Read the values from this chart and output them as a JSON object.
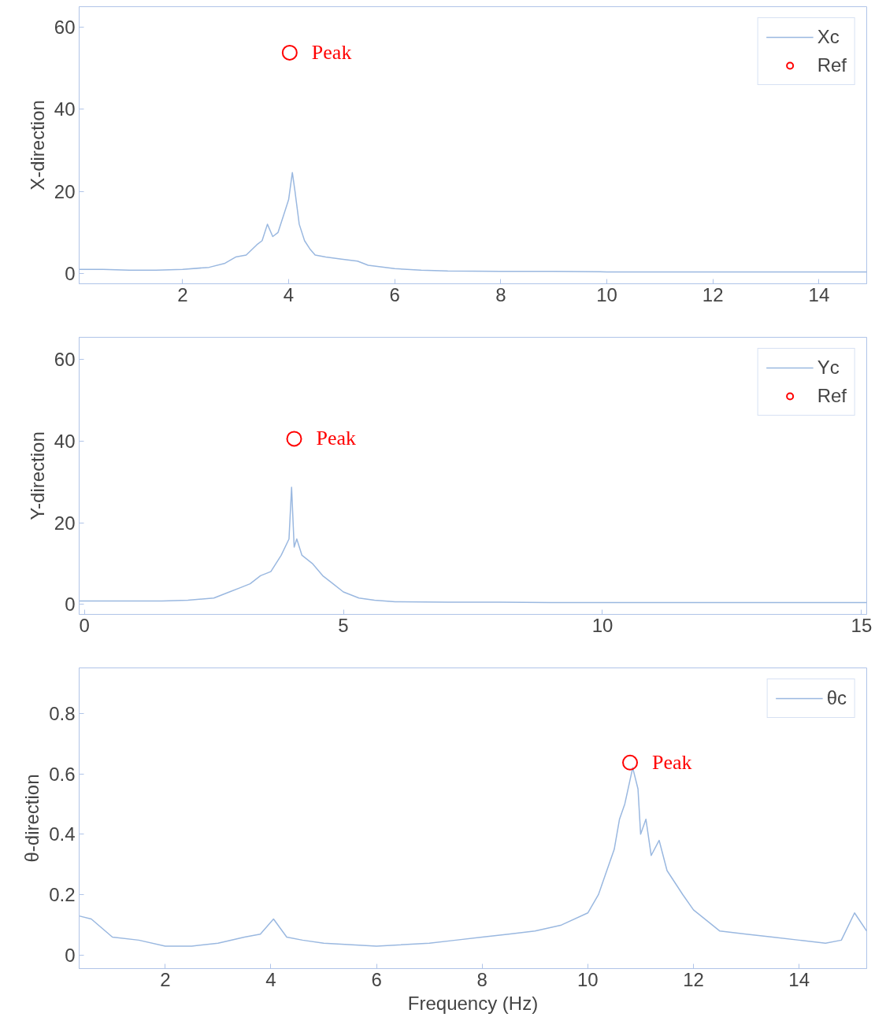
{
  "chart_data": [
    {
      "type": "line",
      "ylabel": "X-direction",
      "xlim": [
        0.05,
        14.9
      ],
      "ylim": [
        -2.5,
        65
      ],
      "xticks": [
        2,
        4,
        6,
        8,
        10,
        12,
        14
      ],
      "yticks": [
        0,
        20,
        40,
        60
      ],
      "grid": false,
      "legend": "top right",
      "annotations": [
        {
          "text": "Peak",
          "x": 4.02,
          "y": 53.8
        }
      ],
      "series": [
        {
          "name": "Xc",
          "color": "#9ab8e0",
          "x": [
            0.05,
            0.5,
            1.0,
            1.5,
            2.0,
            2.5,
            2.8,
            3.0,
            3.2,
            3.4,
            3.5,
            3.6,
            3.7,
            3.8,
            3.9,
            4.0,
            4.07,
            4.12,
            4.2,
            4.3,
            4.4,
            4.5,
            4.7,
            5.0,
            5.3,
            5.5,
            6.0,
            6.5,
            7.0,
            8.0,
            9.0,
            10.0,
            11.0,
            12.0,
            13.0,
            14.0,
            14.9
          ],
          "values": [
            1,
            1,
            0.8,
            0.8,
            1,
            1.5,
            2.5,
            4,
            4.5,
            7,
            8,
            12,
            9,
            10,
            14,
            18,
            24.6,
            20,
            12,
            8,
            6,
            4.5,
            4,
            3.5,
            3,
            2,
            1.2,
            0.8,
            0.6,
            0.5,
            0.5,
            0.4,
            0.4,
            0.4,
            0.4,
            0.4,
            0.4
          ]
        },
        {
          "name": "Ref",
          "type": "scatter",
          "marker": "circle",
          "color": "#ff0000",
          "x": [
            4.02
          ],
          "values": [
            53.8
          ]
        }
      ]
    },
    {
      "type": "line",
      "ylabel": "Y-direction",
      "xlim": [
        -0.1,
        15.1
      ],
      "ylim": [
        -2.5,
        65.5
      ],
      "xticks": [
        0,
        5,
        10,
        15
      ],
      "yticks": [
        0,
        20,
        40,
        60
      ],
      "grid": false,
      "legend": "top right",
      "annotations": [
        {
          "text": "Peak",
          "x": 4.05,
          "y": 40.6
        }
      ],
      "series": [
        {
          "name": "Yc",
          "color": "#9ab8e0",
          "x": [
            -0.1,
            0.5,
            1.0,
            1.5,
            2.0,
            2.5,
            2.8,
            3.0,
            3.2,
            3.4,
            3.6,
            3.8,
            3.95,
            4.0,
            4.05,
            4.1,
            4.2,
            4.4,
            4.6,
            4.8,
            5.0,
            5.3,
            5.6,
            6.0,
            7.0,
            8.0,
            9.0,
            10.0,
            11.0,
            12.0,
            13.0,
            14.0,
            15.1
          ],
          "values": [
            0.8,
            0.8,
            0.8,
            0.8,
            1,
            1.5,
            3,
            4,
            5,
            7,
            8,
            12,
            16,
            28.7,
            14,
            16,
            12,
            10,
            7,
            5,
            3,
            1.5,
            1,
            0.6,
            0.5,
            0.5,
            0.4,
            0.4,
            0.4,
            0.4,
            0.4,
            0.4,
            0.4
          ]
        },
        {
          "name": "Ref",
          "type": "scatter",
          "marker": "circle",
          "color": "#ff0000",
          "x": [
            4.05
          ],
          "values": [
            40.6
          ]
        }
      ]
    },
    {
      "type": "line",
      "ylabel": "θ-direction",
      "xlabel": "Frequency (Hz)",
      "xlim": [
        0.37,
        15.28
      ],
      "ylim": [
        -0.044,
        0.95
      ],
      "xticks": [
        2,
        4,
        6,
        8,
        10,
        12,
        14
      ],
      "yticks": [
        0,
        0.2,
        0.4,
        0.6,
        0.8
      ],
      "grid": false,
      "legend": "top right",
      "annotations": [
        {
          "text": "Peak",
          "x": 10.8,
          "y": 0.637
        }
      ],
      "series": [
        {
          "name": "θc",
          "color": "#9ab8e0",
          "x": [
            0.37,
            0.6,
            0.8,
            1.0,
            1.5,
            2.0,
            2.5,
            3.0,
            3.5,
            3.8,
            4.05,
            4.3,
            4.6,
            5.0,
            6.0,
            7.0,
            7.5,
            8.0,
            8.5,
            9.0,
            9.5,
            10.0,
            10.2,
            10.3,
            10.5,
            10.6,
            10.7,
            10.8,
            10.85,
            10.95,
            11.0,
            11.1,
            11.2,
            11.35,
            11.5,
            11.8,
            12.0,
            12.5,
            13.0,
            13.5,
            14.0,
            14.5,
            14.8,
            15.05,
            15.28
          ],
          "values": [
            0.13,
            0.12,
            0.09,
            0.06,
            0.05,
            0.03,
            0.03,
            0.04,
            0.06,
            0.07,
            0.12,
            0.06,
            0.05,
            0.04,
            0.03,
            0.04,
            0.05,
            0.06,
            0.07,
            0.08,
            0.1,
            0.14,
            0.2,
            0.25,
            0.35,
            0.45,
            0.5,
            0.58,
            0.62,
            0.55,
            0.4,
            0.45,
            0.33,
            0.38,
            0.28,
            0.2,
            0.15,
            0.08,
            0.07,
            0.06,
            0.05,
            0.04,
            0.05,
            0.14,
            0.08
          ]
        },
        {
          "type": "scatter",
          "marker": "circle",
          "color": "#ff0000",
          "x": [
            10.8
          ],
          "values": [
            0.637
          ]
        }
      ]
    }
  ]
}
